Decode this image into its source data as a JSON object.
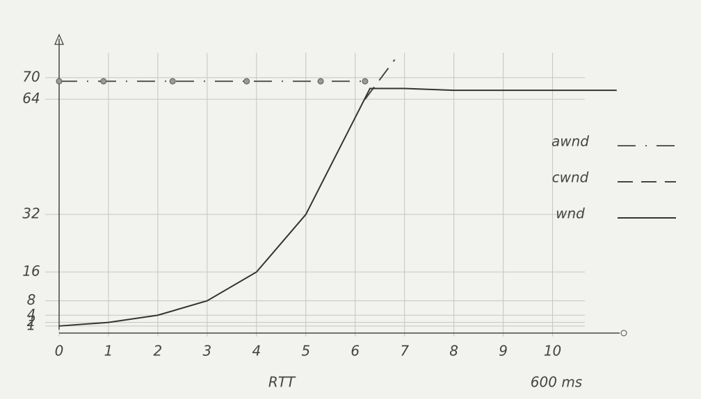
{
  "chart_data": {
    "type": "line",
    "x_label": "RTT",
    "annotation": "600 ms",
    "xlim": [
      0,
      11.5
    ],
    "xticks": [
      0,
      1,
      2,
      3,
      4,
      5,
      6,
      7,
      8,
      9,
      10
    ],
    "ylim": [
      0,
      75
    ],
    "yticks": [
      1,
      2,
      4,
      8,
      16,
      32,
      64,
      70
    ],
    "grid": true,
    "legend": "right",
    "series": [
      {
        "name": "awnd",
        "color": "#555555",
        "style": "dashdot",
        "markers": true,
        "x": [
          0,
          0.9,
          2.3,
          3.8,
          5.3,
          6.2
        ],
        "values": [
          69,
          69,
          69,
          69,
          69,
          69
        ]
      },
      {
        "name": "cwnd",
        "color": "#444444",
        "style": "dashed",
        "markers": false,
        "x": [
          6.2,
          6.8
        ],
        "values": [
          64,
          75
        ]
      },
      {
        "name": "wnd",
        "color": "#333333",
        "style": "solid",
        "markers": false,
        "x": [
          0,
          1,
          2,
          3,
          4,
          5,
          6.3,
          7,
          8,
          9,
          10,
          11.3
        ],
        "values": [
          1,
          2,
          4,
          8,
          16,
          32,
          67,
          67,
          66.5,
          66.5,
          66.5,
          66.5
        ]
      }
    ]
  }
}
